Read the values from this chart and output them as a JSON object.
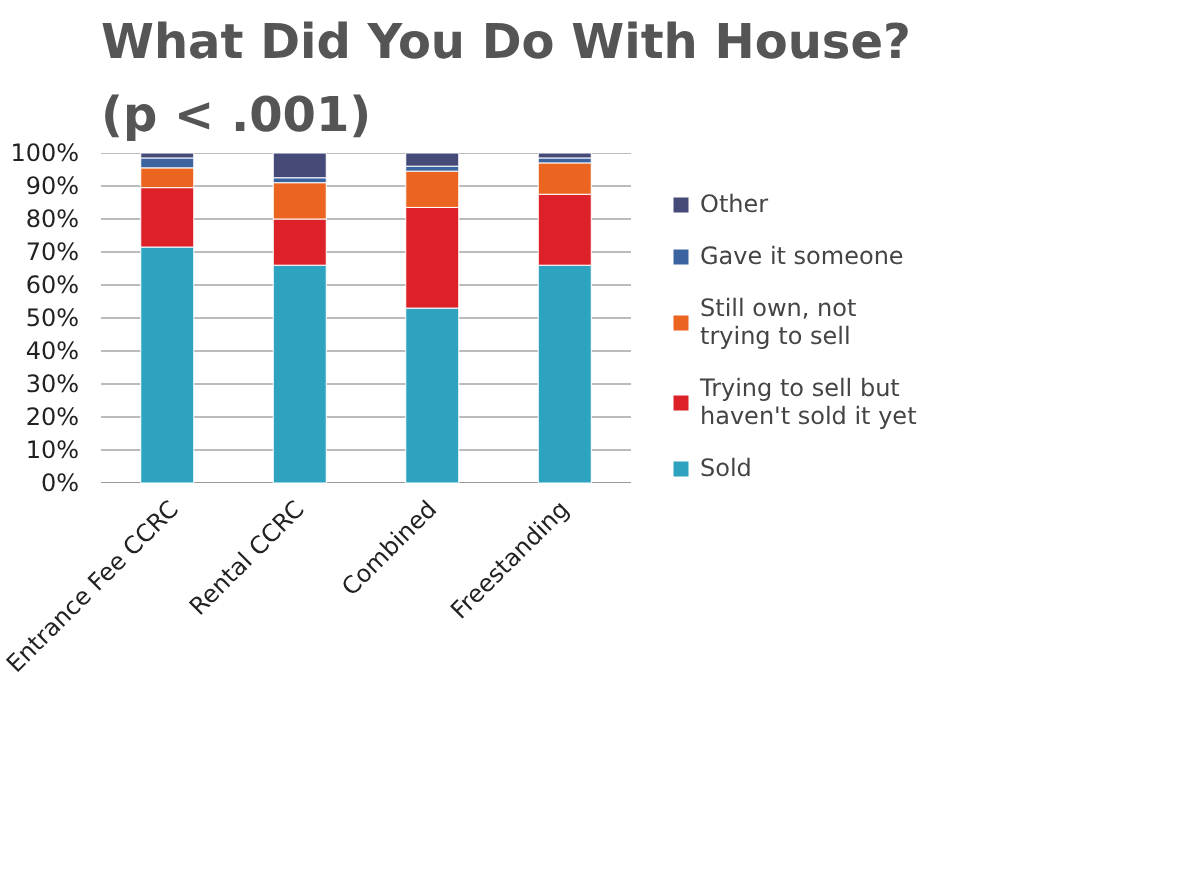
{
  "chart_data": {
    "type": "bar",
    "title": "What Did You Do With House? (p < .001)",
    "stacked": true,
    "categories": [
      "Entrance Fee CCRC",
      "Rental CCRC",
      "Combined",
      "Freestanding"
    ],
    "series": [
      {
        "name": "Sold",
        "color": "#2ea3bf",
        "values": [
          71.5,
          66,
          53,
          66
        ]
      },
      {
        "name": "Trying to sell but haven't sold it yet",
        "color": "#dc2128",
        "values": [
          18,
          14,
          30.5,
          21.5
        ]
      },
      {
        "name": "Still own, not trying to sell",
        "color": "#ec6520",
        "values": [
          6,
          11,
          11,
          9.5
        ]
      },
      {
        "name": "Gave it someone",
        "color": "#3a63a0",
        "values": [
          3,
          1.5,
          1.5,
          1.5
        ]
      },
      {
        "name": "Other",
        "color": "#464a78",
        "values": [
          1.5,
          7.5,
          4,
          1.5
        ]
      }
    ],
    "ylim": [
      0,
      100
    ],
    "yticks": [
      {
        "value": 0,
        "label": "0%"
      },
      {
        "value": 10,
        "label": "10%"
      },
      {
        "value": 20,
        "label": "20%"
      },
      {
        "value": 30,
        "label": "30%"
      },
      {
        "value": 40,
        "label": "40%"
      },
      {
        "value": 50,
        "label": "50%"
      },
      {
        "value": 60,
        "label": "60%"
      },
      {
        "value": 70,
        "label": "70%"
      },
      {
        "value": 80,
        "label": "80%"
      },
      {
        "value": 90,
        "label": "90%"
      },
      {
        "value": 100,
        "label": "100%"
      }
    ],
    "grid": "y",
    "legend": "right"
  }
}
